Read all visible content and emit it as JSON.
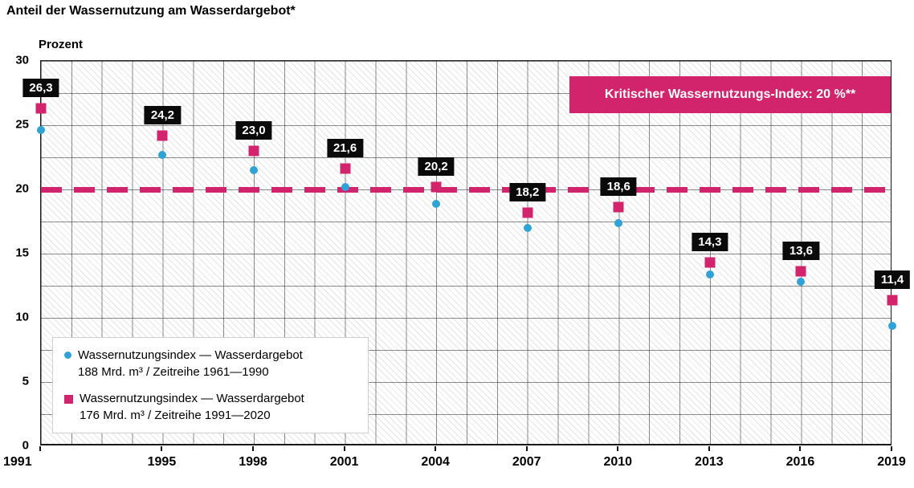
{
  "title": "Anteil der Wassernutzung am Wasserdargebot*",
  "y_axis_title": "Prozent",
  "colors": {
    "pink": "#d2246d",
    "blue": "#2fa3d6",
    "value_label_bg": "#0a0a0a"
  },
  "chart_data": {
    "type": "scatter",
    "x": [
      1991,
      1995,
      1998,
      2001,
      2004,
      2007,
      2010,
      2013,
      2016,
      2019
    ],
    "x_range": [
      1991,
      2019
    ],
    "ylim": [
      0,
      30
    ],
    "y_ticks": [
      0,
      5,
      10,
      15,
      20,
      25,
      30
    ],
    "grid": "on",
    "xlabel": "",
    "ylabel": "Prozent",
    "series": [
      {
        "name": "Wassernutzungsindex — Wasserdargebot 188 Mrd. m³ / Zeitreihe 1961—1990",
        "marker": "circle",
        "color": "#2fa3d6",
        "values": [
          24.6,
          22.7,
          21.5,
          20.2,
          18.9,
          17.0,
          17.4,
          13.4,
          12.8,
          9.4
        ],
        "labeled": false
      },
      {
        "name": "Wassernutzungsindex — Wasserdargebot 176 Mrd. m³ / Zeitreihe 1991—2020",
        "marker": "square",
        "color": "#d2246d",
        "values": [
          26.3,
          24.2,
          23.0,
          21.6,
          20.2,
          18.2,
          18.6,
          14.3,
          13.6,
          11.4
        ],
        "labeled": true,
        "labels": [
          "26,3",
          "24,2",
          "23,0",
          "21,6",
          "20,2",
          "18,2",
          "18,6",
          "14,3",
          "13,6",
          "11,4"
        ]
      }
    ],
    "reference_line": {
      "value": 20,
      "label": "Kritischer Wassernutzungs-Index: 20 %**",
      "color": "#d2246d",
      "style": "dashed"
    },
    "legend_position": "bottom-left-inside"
  },
  "legend": {
    "items": [
      {
        "marker": "circle",
        "color": "#2fa3d6",
        "line1": "Wassernutzungsindex — Wasserdargebot",
        "line2": "188 Mrd. m³ / Zeitreihe 1961—1990"
      },
      {
        "marker": "square",
        "color": "#d2246d",
        "line1": "Wassernutzungsindex — Wasserdargebot",
        "line2": "176 Mrd. m³ / Zeitreihe 1991—2020"
      }
    ]
  }
}
